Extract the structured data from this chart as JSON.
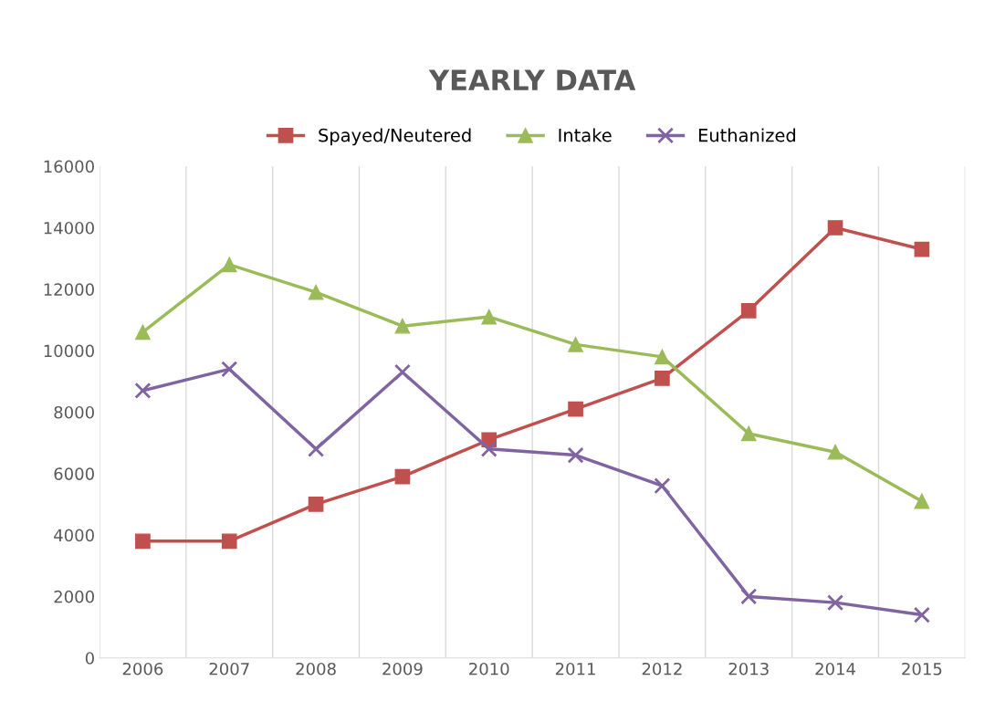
{
  "chart_data": {
    "type": "line",
    "title": "YEARLY DATA",
    "categories": [
      "2006",
      "2007",
      "2008",
      "2009",
      "2010",
      "2011",
      "2012",
      "2013",
      "2014",
      "2015"
    ],
    "series": [
      {
        "name": "Spayed/Neutered",
        "color": "#c0504d",
        "marker": "square",
        "values": [
          3800,
          3800,
          5000,
          5900,
          7100,
          8100,
          9100,
          11300,
          14000,
          13300
        ]
      },
      {
        "name": "Intake",
        "color": "#9bbb59",
        "marker": "triangle",
        "values": [
          10600,
          12800,
          11900,
          10800,
          11100,
          10200,
          9800,
          7300,
          6700,
          5100
        ]
      },
      {
        "name": "Euthanized",
        "color": "#8064a2",
        "marker": "cross",
        "values": [
          8700,
          9400,
          6800,
          9300,
          6800,
          6600,
          5600,
          2000,
          1800,
          1400
        ]
      }
    ],
    "ylim": [
      0,
      16000
    ],
    "yticks": [
      0,
      2000,
      4000,
      6000,
      8000,
      10000,
      12000,
      14000,
      16000
    ],
    "grid": "x",
    "legend": "top",
    "line_style": "solid"
  }
}
